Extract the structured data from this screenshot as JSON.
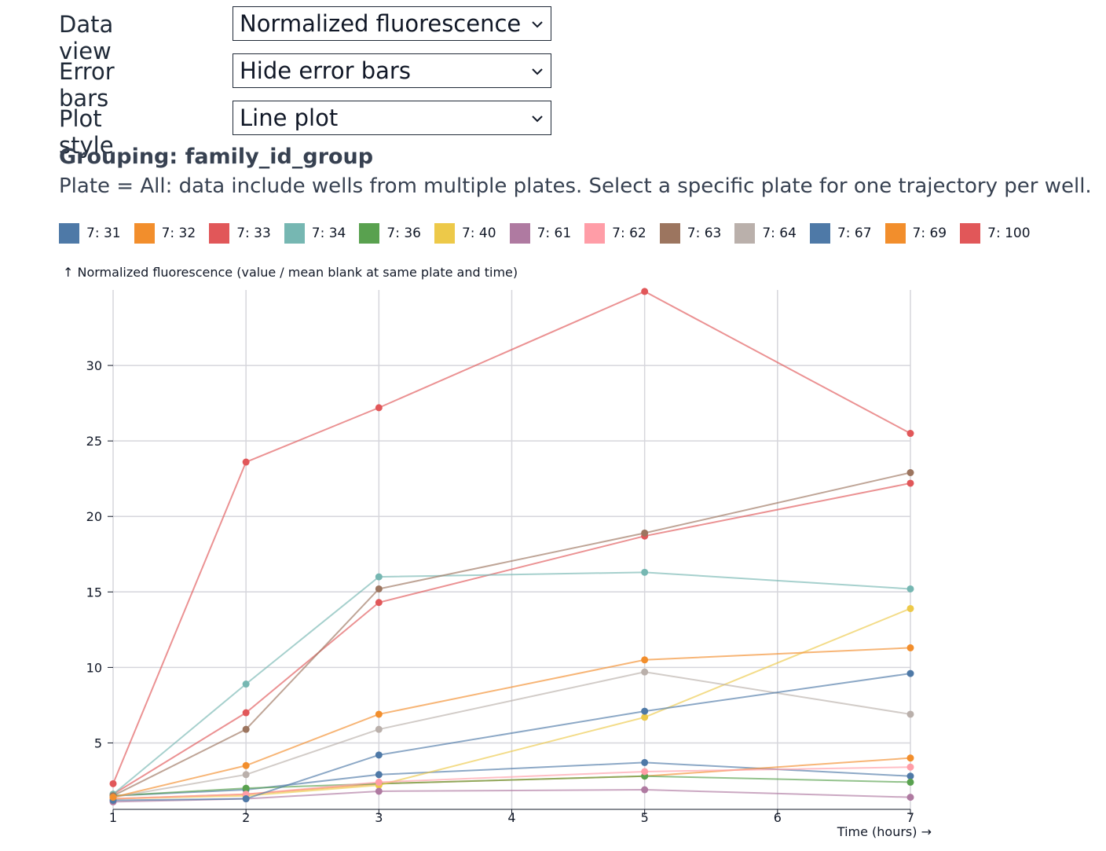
{
  "controls": [
    {
      "label": "Data view",
      "value": "Normalized fluorescence"
    },
    {
      "label": "Error bars",
      "value": "Hide error bars"
    },
    {
      "label": "Plot style",
      "value": "Line plot"
    }
  ],
  "grouping_title": "Grouping: family_id_group",
  "plate_note": "Plate = All: data include wells from multiple plates. Select a specific plate for one trajectory per well.",
  "legend": [
    {
      "label": "7: 31",
      "color": "#4e79a7"
    },
    {
      "label": "7: 32",
      "color": "#f28e2c"
    },
    {
      "label": "7: 33",
      "color": "#e15759"
    },
    {
      "label": "7: 34",
      "color": "#76b7b2"
    },
    {
      "label": "7: 36",
      "color": "#59a14f"
    },
    {
      "label": "7: 40",
      "color": "#edc949"
    },
    {
      "label": "7: 61",
      "color": "#af7aa1"
    },
    {
      "label": "7: 62",
      "color": "#ff9da7"
    },
    {
      "label": "7: 63",
      "color": "#9c755f"
    },
    {
      "label": "7: 64",
      "color": "#bab0ab"
    },
    {
      "label": "7: 67",
      "color": "#4e79a7"
    },
    {
      "label": "7: 69",
      "color": "#f28e2c"
    },
    {
      "label": "7: 100",
      "color": "#e15759"
    }
  ],
  "chart_data": {
    "type": "line",
    "xlabel": "Time (hours) →",
    "ylabel": "↑ Normalized fluorescence (value / mean blank at same plate and time)",
    "xlim": [
      1,
      7
    ],
    "ylim": [
      0.6,
      35
    ],
    "x_ticks": [
      1,
      2,
      3,
      4,
      5,
      6,
      7
    ],
    "y_ticks": [
      5,
      10,
      15,
      20,
      25,
      30
    ],
    "grid": true,
    "x": [
      1,
      2,
      3,
      5,
      7
    ],
    "series": [
      {
        "name": "7: 31",
        "color": "#4e79a7",
        "values": [
          1.5,
          1.9,
          2.9,
          3.7,
          2.8
        ]
      },
      {
        "name": "7: 32",
        "color": "#f28e2c",
        "values": [
          1.3,
          1.6,
          2.3,
          2.8,
          4.0
        ]
      },
      {
        "name": "7: 33",
        "color": "#e15759",
        "values": [
          1.6,
          7.0,
          14.3,
          18.7,
          22.2
        ]
      },
      {
        "name": "7: 34",
        "color": "#76b7b2",
        "values": [
          1.6,
          8.9,
          16.0,
          16.3,
          15.2
        ]
      },
      {
        "name": "7: 36",
        "color": "#59a14f",
        "values": [
          1.5,
          2.0,
          2.3,
          2.8,
          2.4
        ]
      },
      {
        "name": "7: 40",
        "color": "#edc949",
        "values": [
          1.3,
          1.5,
          2.2,
          6.7,
          13.9
        ]
      },
      {
        "name": "7: 61",
        "color": "#af7aa1",
        "values": [
          1.1,
          1.3,
          1.8,
          1.9,
          1.4
        ]
      },
      {
        "name": "7: 62",
        "color": "#ff9da7",
        "values": [
          1.3,
          1.6,
          2.4,
          3.1,
          3.4
        ]
      },
      {
        "name": "7: 63",
        "color": "#9c755f",
        "values": [
          1.5,
          5.9,
          15.2,
          18.9,
          22.9
        ]
      },
      {
        "name": "7: 64",
        "color": "#bab0ab",
        "values": [
          1.4,
          2.9,
          5.9,
          9.7,
          6.9
        ]
      },
      {
        "name": "7: 67",
        "color": "#4e79a7",
        "values": [
          1.2,
          1.3,
          4.2,
          7.1,
          9.6
        ]
      },
      {
        "name": "7: 69",
        "color": "#f28e2c",
        "values": [
          1.4,
          3.5,
          6.9,
          10.5,
          11.3
        ]
      },
      {
        "name": "7: 100",
        "color": "#e15759",
        "values": [
          2.3,
          23.6,
          27.2,
          34.9,
          25.5
        ]
      }
    ]
  }
}
